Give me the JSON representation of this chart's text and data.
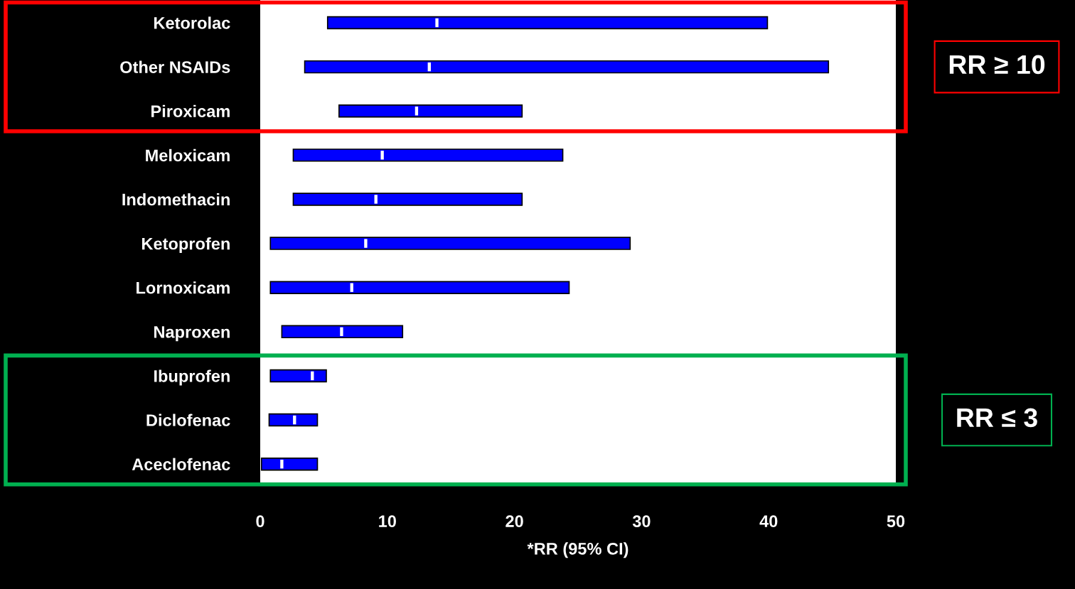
{
  "chart_data": {
    "type": "bar",
    "orientation": "horizontal",
    "xlabel": "*RR (95% CI)",
    "categories": [
      "Ketorolac",
      "Other NSAIDs",
      "Piroxicam",
      "Meloxicam",
      "Indomethacin",
      "Ketoprofen",
      "Lornoxicam",
      "Naproxen",
      "Ibuprofen",
      "Diclofenac",
      "Aceclofenac"
    ],
    "series": [
      {
        "color": "#0000ff",
        "base": [
          5.3,
          3.5,
          6.2,
          2.6,
          2.6,
          0.8,
          0.8,
          1.7,
          0.8,
          0.7,
          0.1
        ],
        "values": [
          34.6,
          41.2,
          14.4,
          21.2,
          18.0,
          28.3,
          23.5,
          9.5,
          4.4,
          3.8,
          4.4
        ]
      },
      {
        "type": "scatter",
        "color": "#ffffff",
        "marker": "square",
        "values": [
          13.9,
          13.3,
          12.3,
          9.6,
          9.1,
          8.3,
          7.2,
          6.4,
          4.1,
          2.7,
          1.7
        ]
      }
    ],
    "xlim": [
      0,
      50
    ],
    "xticks": [
      0,
      10,
      20,
      30,
      40,
      50
    ],
    "grid": false,
    "annotations": [
      "RR ≥ 10",
      "RR ≤ 3"
    ]
  }
}
